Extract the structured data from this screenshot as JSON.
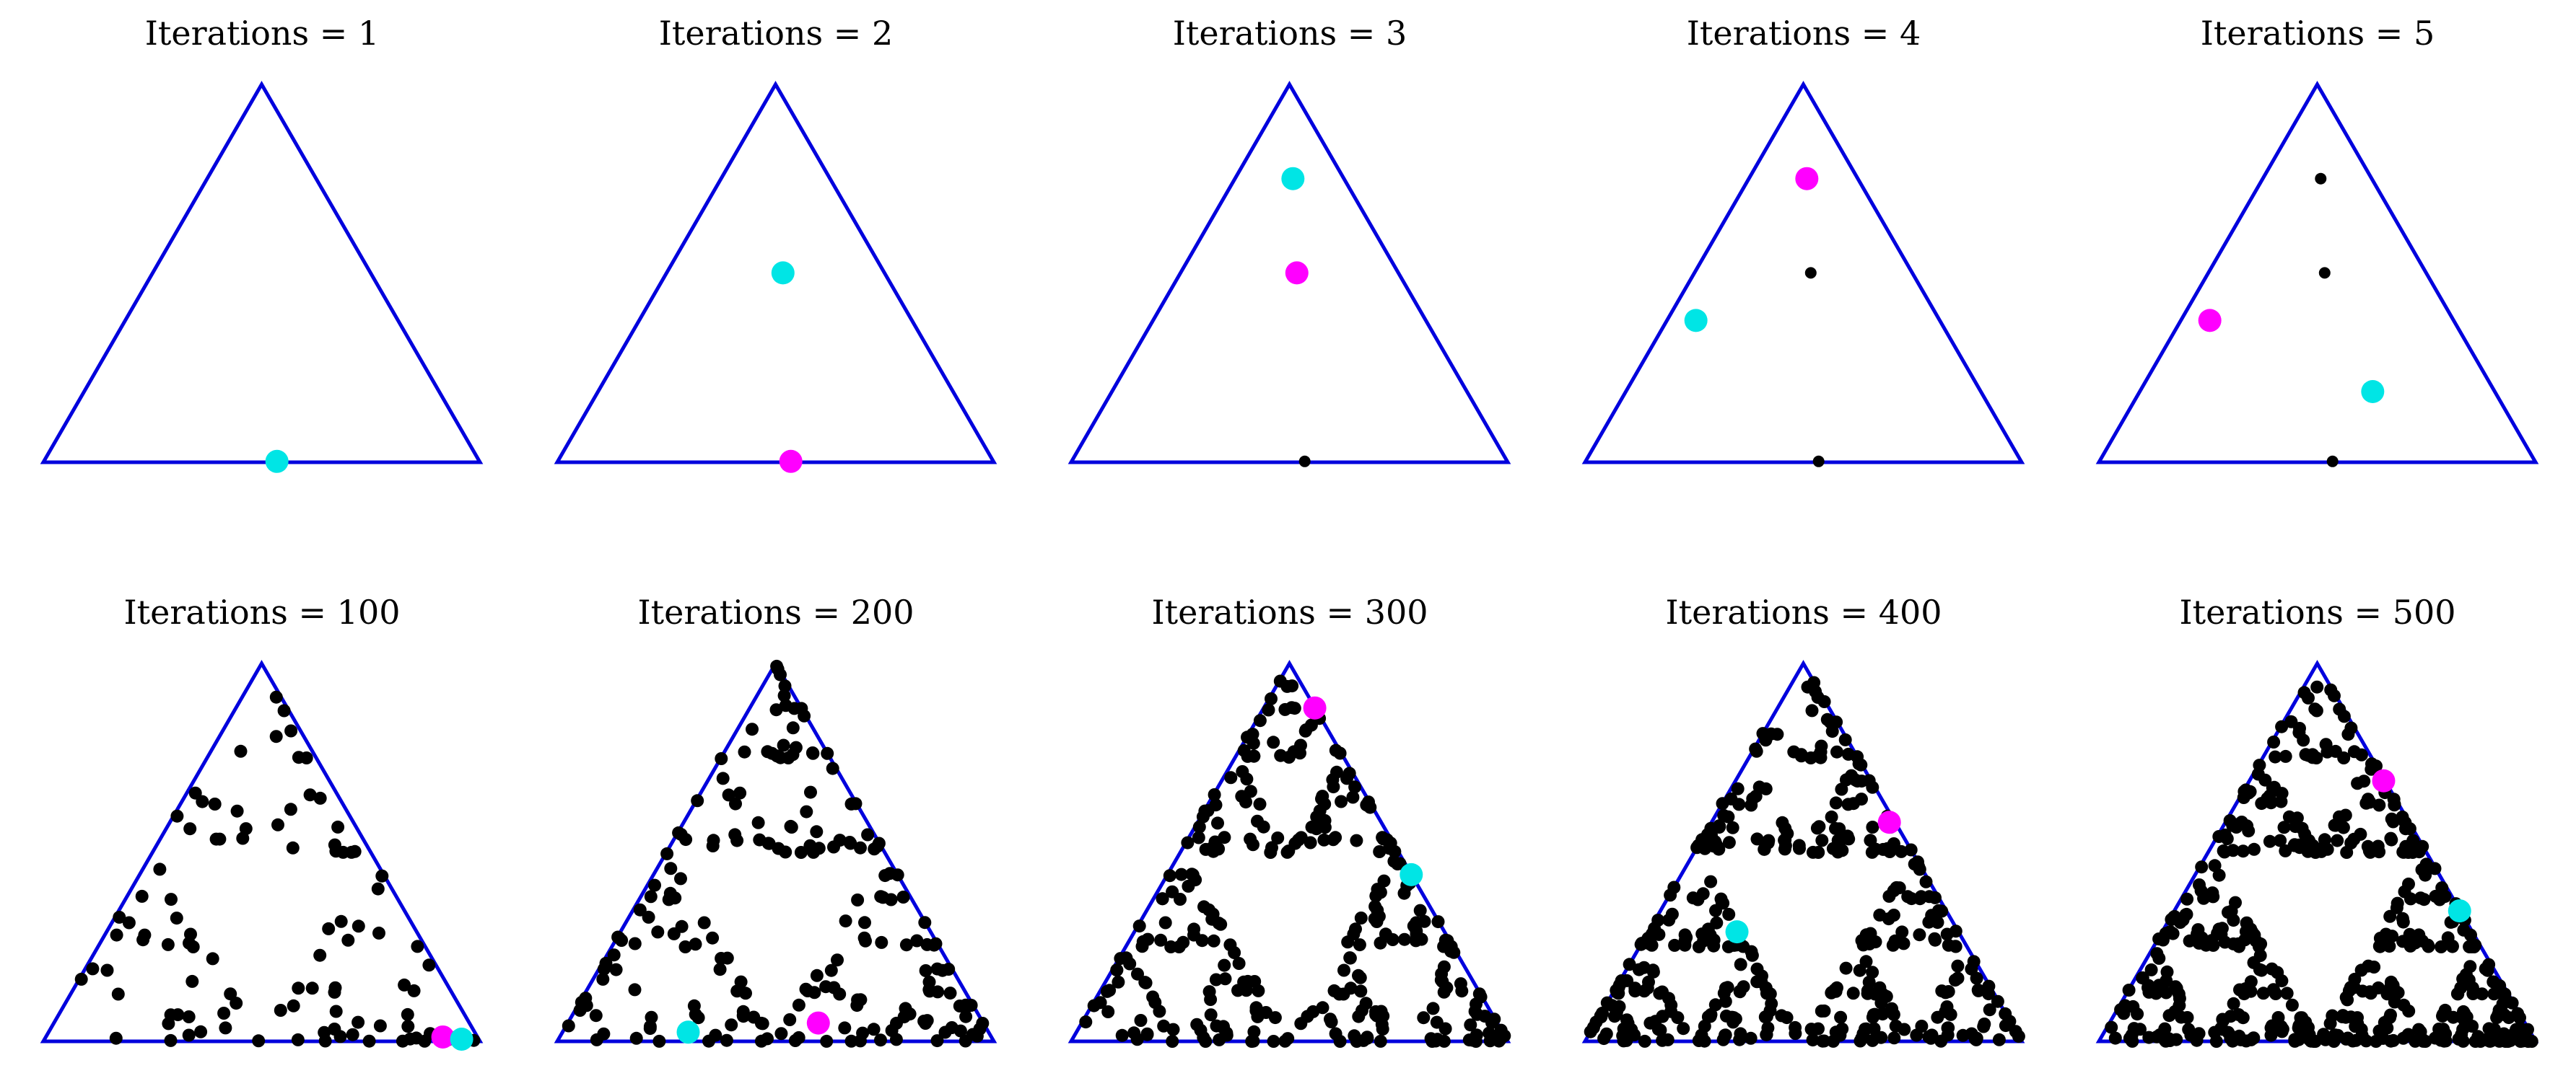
{
  "colors": {
    "triangle": "#0000dd",
    "points": "#000000",
    "current_point": "#ff00ff",
    "next_point": "#00e5e5",
    "background": "#ffffff"
  },
  "chart_data": [
    {
      "type": "scatter",
      "title": "Iterations = 1",
      "iterations": 1,
      "triangle_vertices": [
        [
          0,
          0
        ],
        [
          1,
          0
        ],
        [
          0.5,
          0.866
        ]
      ],
      "xlim": [
        0,
        1
      ],
      "ylim": [
        0,
        0.866
      ],
      "grid": false,
      "legend": "none",
      "points": [],
      "current_point": null,
      "next_point": [
        0.535,
        0.002
      ]
    },
    {
      "type": "scatter",
      "title": "Iterations = 2",
      "iterations": 2,
      "triangle_vertices": [
        [
          0,
          0
        ],
        [
          1,
          0
        ],
        [
          0.5,
          0.866
        ]
      ],
      "xlim": [
        0,
        1
      ],
      "ylim": [
        0,
        0.866
      ],
      "grid": false,
      "legend": "none",
      "points": [],
      "current_point": [
        0.535,
        0.002
      ],
      "next_point": [
        0.517,
        0.434
      ]
    },
    {
      "type": "scatter",
      "title": "Iterations = 3",
      "iterations": 3,
      "triangle_vertices": [
        [
          0,
          0
        ],
        [
          1,
          0
        ],
        [
          0.5,
          0.866
        ]
      ],
      "xlim": [
        0,
        1
      ],
      "ylim": [
        0,
        0.866
      ],
      "grid": false,
      "legend": "none",
      "points": [
        [
          0.535,
          0.002
        ]
      ],
      "current_point": [
        0.517,
        0.434
      ],
      "next_point": [
        0.508,
        0.65
      ]
    },
    {
      "type": "scatter",
      "title": "Iterations = 4",
      "iterations": 4,
      "triangle_vertices": [
        [
          0,
          0
        ],
        [
          1,
          0
        ],
        [
          0.5,
          0.866
        ]
      ],
      "xlim": [
        0,
        1
      ],
      "ylim": [
        0,
        0.866
      ],
      "grid": false,
      "legend": "none",
      "points": [
        [
          0.535,
          0.002
        ],
        [
          0.517,
          0.434
        ]
      ],
      "current_point": [
        0.508,
        0.65
      ],
      "next_point": [
        0.254,
        0.325
      ]
    },
    {
      "type": "scatter",
      "title": "Iterations = 5",
      "iterations": 5,
      "triangle_vertices": [
        [
          0,
          0
        ],
        [
          1,
          0
        ],
        [
          0.5,
          0.866
        ]
      ],
      "xlim": [
        0,
        1
      ],
      "ylim": [
        0,
        0.866
      ],
      "grid": false,
      "legend": "none",
      "points": [
        [
          0.535,
          0.002
        ],
        [
          0.517,
          0.434
        ],
        [
          0.508,
          0.65
        ]
      ],
      "current_point": [
        0.254,
        0.325
      ],
      "next_point": [
        0.627,
        0.162
      ]
    },
    {
      "type": "scatter",
      "title": "Iterations = 100",
      "iterations": 100,
      "triangle_vertices": [
        [
          0,
          0
        ],
        [
          1,
          0
        ],
        [
          0.5,
          0.866
        ]
      ],
      "xlim": [
        0,
        1
      ],
      "ylim": [
        0,
        0.866
      ],
      "grid": false,
      "legend": "none",
      "points": "sierpinski-chaos-game",
      "current_point": [
        0.915,
        0.01
      ],
      "next_point": [
        0.958,
        0.005
      ]
    },
    {
      "type": "scatter",
      "title": "Iterations = 200",
      "iterations": 200,
      "triangle_vertices": [
        [
          0,
          0
        ],
        [
          1,
          0
        ],
        [
          0.5,
          0.866
        ]
      ],
      "xlim": [
        0,
        1
      ],
      "ylim": [
        0,
        0.866
      ],
      "grid": false,
      "legend": "none",
      "points": "sierpinski-chaos-game",
      "current_point": [
        0.598,
        0.042
      ],
      "next_point": [
        0.3,
        0.021
      ]
    },
    {
      "type": "scatter",
      "title": "Iterations = 300",
      "iterations": 300,
      "triangle_vertices": [
        [
          0,
          0
        ],
        [
          1,
          0
        ],
        [
          0.5,
          0.866
        ]
      ],
      "xlim": [
        0,
        1
      ],
      "ylim": [
        0,
        0.866
      ],
      "grid": false,
      "legend": "none",
      "points": "sierpinski-chaos-game",
      "current_point": [
        0.558,
        0.764
      ],
      "next_point": [
        0.779,
        0.382
      ]
    },
    {
      "type": "scatter",
      "title": "Iterations = 400",
      "iterations": 400,
      "triangle_vertices": [
        [
          0,
          0
        ],
        [
          1,
          0
        ],
        [
          0.5,
          0.866
        ]
      ],
      "xlim": [
        0,
        1
      ],
      "ylim": [
        0,
        0.866
      ],
      "grid": false,
      "legend": "none",
      "points": "sierpinski-chaos-game",
      "current_point": [
        0.697,
        0.502
      ],
      "next_point": [
        0.348,
        0.251
      ]
    },
    {
      "type": "scatter",
      "title": "Iterations = 500",
      "iterations": 500,
      "triangle_vertices": [
        [
          0,
          0
        ],
        [
          1,
          0
        ],
        [
          0.5,
          0.866
        ]
      ],
      "xlim": [
        0,
        1
      ],
      "ylim": [
        0,
        0.866
      ],
      "grid": false,
      "legend": "none",
      "points": "sierpinski-chaos-game",
      "current_point": [
        0.652,
        0.597
      ],
      "next_point": [
        0.826,
        0.299
      ]
    }
  ]
}
